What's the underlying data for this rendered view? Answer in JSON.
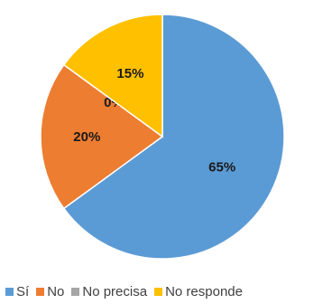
{
  "chart_data": {
    "type": "pie",
    "start_angle_deg": 0,
    "direction": "clockwise",
    "slices": [
      {
        "name": "Sí",
        "value": 65,
        "label": "65%",
        "color": "#5b9bd5"
      },
      {
        "name": "No",
        "value": 20,
        "label": "20%",
        "color": "#ed7d31"
      },
      {
        "name": "No precisa",
        "value": 0,
        "label": "0%",
        "color": "#a5a5a5"
      },
      {
        "name": "No responde",
        "value": 15,
        "label": "15%",
        "color": "#ffc000"
      }
    ],
    "legend_position": "bottom"
  }
}
